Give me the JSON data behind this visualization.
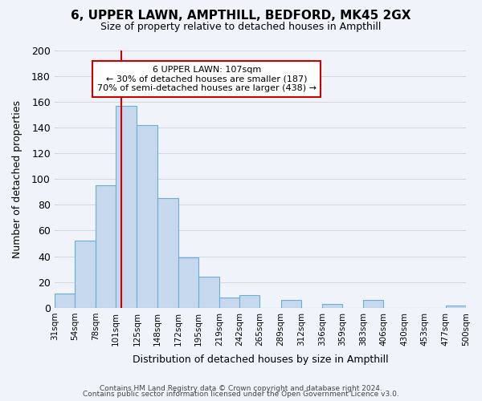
{
  "title": "6, UPPER LAWN, AMPTHILL, BEDFORD, MK45 2GX",
  "subtitle": "Size of property relative to detached houses in Ampthill",
  "xlabel": "Distribution of detached houses by size in Ampthill",
  "ylabel": "Number of detached properties",
  "footer_line1": "Contains HM Land Registry data © Crown copyright and database right 2024.",
  "footer_line2": "Contains public sector information licensed under the Open Government Licence v3.0.",
  "bin_labels": [
    "31sqm",
    "54sqm",
    "78sqm",
    "101sqm",
    "125sqm",
    "148sqm",
    "172sqm",
    "195sqm",
    "219sqm",
    "242sqm",
    "265sqm",
    "289sqm",
    "312sqm",
    "336sqm",
    "359sqm",
    "383sqm",
    "406sqm",
    "430sqm",
    "453sqm",
    "477sqm",
    "500sqm"
  ],
  "bar_values": [
    11,
    52,
    95,
    157,
    142,
    85,
    39,
    24,
    8,
    10,
    0,
    6,
    0,
    3,
    0,
    6,
    0,
    0,
    0,
    2
  ],
  "bar_color": "#c5d8ed",
  "bar_edge_color": "#6aaed6",
  "grid_color": "#d0d8e8",
  "annotation_line_color": "#cc0000",
  "annotation_box_text": "6 UPPER LAWN: 107sqm\n← 30% of detached houses are smaller (187)\n70% of semi-detached houses are larger (438) →",
  "annotation_box_edge_color": "#cc0000",
  "annotation_box_face_color": "#ffffff",
  "ylim": [
    0,
    200
  ],
  "yticks": [
    0,
    20,
    40,
    60,
    80,
    100,
    120,
    140,
    160,
    180,
    200
  ],
  "bin_edges": [
    31,
    54,
    78,
    101,
    125,
    148,
    172,
    195,
    219,
    242,
    265,
    289,
    312,
    336,
    359,
    383,
    406,
    430,
    453,
    477,
    500
  ],
  "property_size": 107,
  "background_color": "#f0f4fa"
}
